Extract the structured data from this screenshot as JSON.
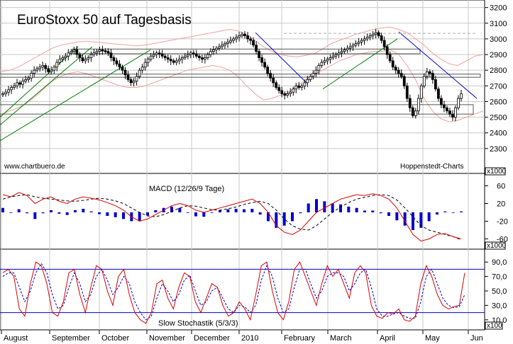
{
  "colors": {
    "background": "#ffffff",
    "grid": "#c8c8c8",
    "candle": "#000000",
    "bollinger": "#f0a0a0",
    "resistance_trend": "#0000cc",
    "support_trend": "#008000",
    "macd_line": "#dd0000",
    "macd_signal": "#000000",
    "macd_histogram": "#0000cc",
    "stoch_k": "#dd0000",
    "stoch_d": "#0000cc",
    "stoch_bands": "#0000cc"
  },
  "chart_data": [
    {
      "type": "candlestick",
      "title": "EuroStoxx 50 auf Tagesbasis",
      "source_left": "www.chartbuero.de",
      "source_right": "Hoppenstedt-Charts",
      "y_scale_marker": "x1000",
      "ylim": [
        2200,
        3230
      ],
      "yticks": [
        "3200",
        "3100",
        "3000",
        "2900",
        "2800",
        "2700",
        "2600",
        "2500",
        "2400",
        "2300"
      ],
      "x_months": [
        "August",
        "September",
        "October",
        "November",
        "December",
        "2010",
        "February",
        "March",
        "April",
        "May",
        "Jun"
      ],
      "close_series": [
        2650,
        2660,
        2675,
        2690,
        2700,
        2720,
        2710,
        2730,
        2740,
        2750,
        2780,
        2800,
        2810,
        2820,
        2830,
        2810,
        2790,
        2800,
        2820,
        2850,
        2870,
        2880,
        2890,
        2910,
        2920,
        2930,
        2900,
        2880,
        2860,
        2870,
        2880,
        2900,
        2910,
        2920,
        2930,
        2925,
        2920,
        2910,
        2880,
        2860,
        2840,
        2820,
        2800,
        2770,
        2740,
        2720,
        2730,
        2760,
        2800,
        2820,
        2850,
        2870,
        2890,
        2900,
        2910,
        2905,
        2890,
        2880,
        2870,
        2860,
        2850,
        2860,
        2870,
        2880,
        2890,
        2900,
        2910,
        2905,
        2890,
        2880,
        2870,
        2880,
        2900,
        2920,
        2930,
        2940,
        2950,
        2960,
        2970,
        2980,
        2990,
        3000,
        3010,
        3020,
        3030,
        3020,
        3000,
        2990,
        2960,
        2920,
        2880,
        2850,
        2820,
        2780,
        2750,
        2720,
        2690,
        2670,
        2650,
        2640,
        2650,
        2660,
        2680,
        2700,
        2690,
        2700,
        2720,
        2740,
        2760,
        2780,
        2800,
        2830,
        2850,
        2860,
        2870,
        2880,
        2890,
        2900,
        2910,
        2920,
        2930,
        2940,
        2950,
        2960,
        2970,
        2980,
        2990,
        3000,
        3010,
        3020,
        3030,
        3040,
        3020,
        2990,
        2950,
        2900,
        2860,
        2820,
        2800,
        2780,
        2760,
        2700,
        2620,
        2560,
        2510,
        2540,
        2620,
        2700,
        2760,
        2790,
        2780,
        2740,
        2680,
        2620,
        2580,
        2560,
        2540,
        2520,
        2500,
        2560,
        2620,
        2650
      ],
      "bollinger_upper": [
        2790,
        2800,
        2820,
        2850,
        2880,
        2910,
        2940,
        2960,
        2970,
        2980,
        2985,
        2980,
        2975,
        2970,
        2965,
        2960,
        2955,
        2960,
        2970,
        2980,
        2990,
        3000,
        3010,
        3020,
        3030,
        3040,
        3050,
        3060,
        3050,
        3030,
        2990,
        2950,
        2920,
        2900,
        2890,
        2885,
        2895,
        2905,
        2935,
        2970,
        2990,
        3010,
        3030,
        3045,
        3060,
        3070,
        3075,
        3060,
        3040,
        3000,
        2960,
        2910,
        2870,
        2840,
        2830,
        2860,
        2890,
        2900
      ],
      "bollinger_lower": [
        2520,
        2540,
        2560,
        2590,
        2630,
        2680,
        2730,
        2760,
        2780,
        2790,
        2780,
        2760,
        2740,
        2720,
        2700,
        2690,
        2690,
        2700,
        2720,
        2740,
        2760,
        2780,
        2800,
        2810,
        2820,
        2830,
        2820,
        2800,
        2760,
        2700,
        2650,
        2610,
        2620,
        2640,
        2660,
        2700,
        2740,
        2770,
        2800,
        2830,
        2860,
        2880,
        2900,
        2910,
        2920,
        2920,
        2930,
        2900,
        2830,
        2740,
        2620,
        2540,
        2490,
        2470,
        2480,
        2500,
        2520,
        2540
      ],
      "resistance_trendlines": [
        {
          "from": [
            3000,
            3040
          ],
          "to": [
            3060,
            2900
          ]
        },
        {
          "from": [
            3040,
            3060
          ],
          "to": [
            3100,
            2800
          ]
        }
      ]
    },
    {
      "type": "line",
      "title": "MACD (12/26/9 Tage)",
      "y_scale_marker": "x1000",
      "ylim": [
        -80,
        80
      ],
      "yticks": [
        "60",
        "20",
        "-20",
        "-60"
      ],
      "macd": [
        40,
        35,
        45,
        38,
        20,
        30,
        35,
        25,
        20,
        30,
        35,
        32,
        28,
        22,
        15,
        5,
        -10,
        -20,
        -15,
        -5,
        5,
        15,
        20,
        15,
        5,
        0,
        5,
        10,
        15,
        20,
        25,
        30,
        20,
        0,
        -30,
        -45,
        -50,
        -40,
        -20,
        0,
        10,
        20,
        30,
        35,
        40,
        38,
        42,
        38,
        30,
        10,
        -20,
        -50,
        -65,
        -60,
        -50,
        -48,
        -55,
        -60
      ],
      "signal": [
        30,
        35,
        38,
        40,
        35,
        32,
        30,
        28,
        26,
        25,
        27,
        30,
        32,
        30,
        26,
        20,
        10,
        0,
        -8,
        -10,
        -5,
        2,
        10,
        15,
        14,
        10,
        6,
        5,
        8,
        12,
        18,
        22,
        25,
        20,
        5,
        -15,
        -30,
        -38,
        -40,
        -30,
        -15,
        0,
        12,
        22,
        30,
        34,
        38,
        40,
        38,
        28,
        10,
        -10,
        -30,
        -40,
        -45,
        -50,
        -55,
        -62
      ],
      "histogram": [
        10,
        0,
        7,
        -2,
        -15,
        -2,
        5,
        -3,
        -6,
        5,
        8,
        2,
        -4,
        -8,
        -11,
        -15,
        -20,
        -20,
        -7,
        5,
        10,
        13,
        10,
        0,
        -9,
        -10,
        -1,
        5,
        7,
        8,
        7,
        8,
        -5,
        -20,
        -35,
        -30,
        -20,
        -2,
        20,
        30,
        25,
        20,
        18,
        13,
        10,
        4,
        4,
        -2,
        -8,
        -18,
        -30,
        -40,
        -35,
        -20,
        -5,
        2,
        0,
        2
      ]
    },
    {
      "type": "line",
      "title": "Slow Stochastik (5/3/3)",
      "y_scale_marker": "x100",
      "ylim": [
        0,
        100
      ],
      "yticks": [
        "90,0",
        "70,0",
        "50,0",
        "30,0",
        "10,0"
      ],
      "bands": [
        80,
        20
      ],
      "k": [
        75,
        80,
        70,
        25,
        15,
        60,
        90,
        85,
        60,
        20,
        15,
        35,
        75,
        80,
        45,
        20,
        55,
        85,
        80,
        50,
        30,
        70,
        80,
        45,
        20,
        10,
        5,
        20,
        60,
        65,
        40,
        25,
        55,
        75,
        70,
        35,
        20,
        40,
        60,
        55,
        30,
        15,
        20,
        35,
        25,
        10,
        45,
        85,
        90,
        50,
        20,
        10,
        35,
        80,
        90,
        70,
        50,
        30,
        60,
        85,
        70,
        80,
        60,
        40,
        75,
        85,
        75,
        30,
        15,
        12,
        20,
        18,
        25,
        10,
        8,
        15,
        60,
        85,
        70,
        45,
        30,
        25,
        28,
        30,
        75
      ],
      "d": [
        70,
        75,
        75,
        55,
        35,
        50,
        75,
        88,
        75,
        45,
        25,
        30,
        55,
        75,
        60,
        35,
        45,
        70,
        80,
        65,
        45,
        55,
        70,
        60,
        35,
        20,
        10,
        15,
        40,
        60,
        50,
        35,
        45,
        65,
        72,
        50,
        30,
        35,
        50,
        55,
        40,
        25,
        20,
        30,
        28,
        20,
        30,
        65,
        85,
        70,
        40,
        20,
        25,
        55,
        80,
        80,
        60,
        40,
        50,
        70,
        75,
        75,
        70,
        50,
        60,
        75,
        80,
        55,
        25,
        15,
        15,
        18,
        20,
        15,
        12,
        12,
        35,
        70,
        80,
        60,
        40,
        30,
        27,
        28,
        45
      ]
    }
  ]
}
